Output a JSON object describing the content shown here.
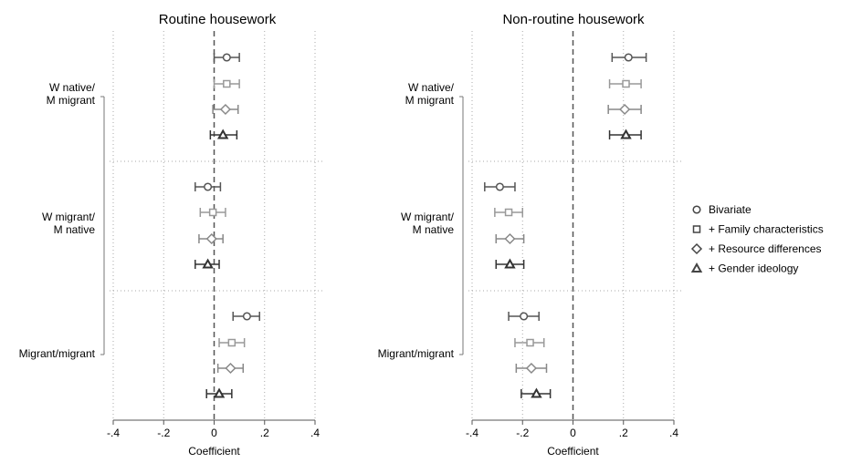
{
  "chart_data": {
    "type": "scatter",
    "xlabel": "Coefficient",
    "xlim": [
      -0.4,
      0.4
    ],
    "xticks": [
      "-.4",
      "-.2",
      "0",
      ".2",
      ".4"
    ],
    "xtick_values": [
      -0.4,
      -0.2,
      0,
      0.2,
      0.4
    ],
    "reference_line": 0,
    "grid": "dotted",
    "legend_placement": "right",
    "groups": [
      {
        "label_lines": [
          "W native/",
          "M migrant"
        ]
      },
      {
        "label_lines": [
          "W migrant/",
          "M native"
        ]
      },
      {
        "label_lines": [
          "Migrant/migrant"
        ]
      }
    ],
    "series": [
      {
        "name": "Bivariate",
        "marker": "circle",
        "color": "#555555"
      },
      {
        "name": "+ Family characteristics",
        "marker": "square",
        "color": "#999999"
      },
      {
        "name": "+ Resource differences",
        "marker": "diamond",
        "color": "#888888"
      },
      {
        "name": "+ Gender ideology",
        "marker": "triangle",
        "color": "#333333"
      }
    ],
    "panels": [
      {
        "title": "Routine housework",
        "estimates": [
          [
            [
              0.05,
              0.0,
              0.1
            ],
            [
              0.05,
              0.0,
              0.1
            ],
            [
              0.045,
              -0.005,
              0.095
            ],
            [
              0.035,
              -0.015,
              0.09
            ]
          ],
          [
            [
              -0.025,
              -0.075,
              0.025
            ],
            [
              -0.005,
              -0.055,
              0.045
            ],
            [
              -0.01,
              -0.06,
              0.035
            ],
            [
              -0.025,
              -0.075,
              0.02
            ]
          ],
          [
            [
              0.13,
              0.075,
              0.18
            ],
            [
              0.07,
              0.02,
              0.12
            ],
            [
              0.065,
              0.015,
              0.115
            ],
            [
              0.02,
              -0.03,
              0.07
            ]
          ]
        ]
      },
      {
        "title": "Non-routine housework",
        "estimates": [
          [
            [
              0.22,
              0.155,
              0.29
            ],
            [
              0.21,
              0.145,
              0.27
            ],
            [
              0.205,
              0.14,
              0.27
            ],
            [
              0.21,
              0.145,
              0.27
            ]
          ],
          [
            [
              -0.29,
              -0.35,
              -0.23
            ],
            [
              -0.255,
              -0.31,
              -0.2
            ],
            [
              -0.25,
              -0.305,
              -0.195
            ],
            [
              -0.25,
              -0.305,
              -0.195
            ]
          ],
          [
            [
              -0.195,
              -0.255,
              -0.135
            ],
            [
              -0.17,
              -0.23,
              -0.115
            ],
            [
              -0.165,
              -0.225,
              -0.105
            ],
            [
              -0.145,
              -0.205,
              -0.09
            ]
          ]
        ]
      }
    ]
  }
}
